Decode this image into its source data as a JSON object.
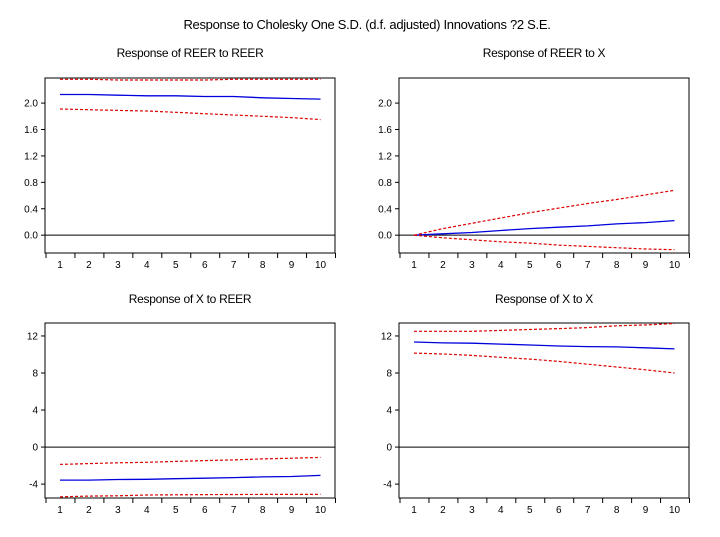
{
  "chart_data": {
    "type": "line",
    "title": "Response to Cholesky One S.D. (d.f. adjusted) Innovations ?2 S.E.",
    "colors": {
      "response": "#0000dd",
      "bands": "#dd0000",
      "zero_line": "#000000"
    },
    "x": [
      1,
      2,
      3,
      4,
      5,
      6,
      7,
      8,
      9,
      10
    ],
    "x_tick_labels": [
      "1",
      "2",
      "3",
      "4",
      "5",
      "6",
      "7",
      "8",
      "9",
      "10"
    ],
    "panels": [
      {
        "title": "Response of REER to REER",
        "ylim": [
          -0.27,
          2.38
        ],
        "y_ticks": [
          0.0,
          0.4,
          0.8,
          1.2,
          1.6,
          2.0
        ],
        "y_tick_labels": [
          "0.0",
          "0.4",
          "0.8",
          "1.2",
          "1.6",
          "2.0"
        ],
        "series": [
          {
            "name": "response",
            "values": [
              2.13,
              2.13,
              2.12,
              2.11,
              2.11,
              2.1,
              2.1,
              2.08,
              2.07,
              2.06
            ]
          },
          {
            "name": "upper",
            "values": [
              2.36,
              2.36,
              2.35,
              2.35,
              2.35,
              2.35,
              2.36,
              2.36,
              2.36,
              2.36
            ]
          },
          {
            "name": "lower",
            "values": [
              1.91,
              1.9,
              1.89,
              1.88,
              1.86,
              1.84,
              1.82,
              1.8,
              1.78,
              1.75
            ]
          }
        ]
      },
      {
        "title": "Response of REER to X",
        "ylim": [
          -0.27,
          2.38
        ],
        "y_ticks": [
          0.0,
          0.4,
          0.8,
          1.2,
          1.6,
          2.0
        ],
        "y_tick_labels": [
          "0.0",
          "0.4",
          "0.8",
          "1.2",
          "1.6",
          "2.0"
        ],
        "series": [
          {
            "name": "response",
            "values": [
              0.0,
              0.02,
              0.04,
              0.07,
              0.1,
              0.12,
              0.14,
              0.17,
              0.19,
              0.22
            ]
          },
          {
            "name": "upper",
            "values": [
              0.0,
              0.1,
              0.18,
              0.26,
              0.34,
              0.41,
              0.48,
              0.54,
              0.61,
              0.68
            ]
          },
          {
            "name": "lower",
            "values": [
              0.0,
              -0.04,
              -0.07,
              -0.1,
              -0.12,
              -0.15,
              -0.17,
              -0.19,
              -0.21,
              -0.22
            ]
          }
        ]
      },
      {
        "title": "Response of X to REER",
        "ylim": [
          -5.5,
          13.4
        ],
        "y_ticks": [
          -4,
          0,
          4,
          8,
          12
        ],
        "y_tick_labels": [
          "-4",
          "0",
          "4",
          "8",
          "12"
        ],
        "series": [
          {
            "name": "response",
            "values": [
              -3.57,
              -3.57,
              -3.5,
              -3.48,
              -3.42,
              -3.36,
              -3.3,
              -3.22,
              -3.18,
              -3.06
            ]
          },
          {
            "name": "upper",
            "values": [
              -1.87,
              -1.78,
              -1.7,
              -1.64,
              -1.55,
              -1.46,
              -1.38,
              -1.28,
              -1.2,
              -1.11
            ]
          },
          {
            "name": "lower",
            "values": [
              -5.37,
              -5.3,
              -5.26,
              -5.18,
              -5.15,
              -5.13,
              -5.12,
              -5.11,
              -5.11,
              -5.11
            ]
          }
        ]
      },
      {
        "title": "Response of X to X",
        "ylim": [
          -5.5,
          13.4
        ],
        "y_ticks": [
          -4,
          0,
          4,
          8,
          12
        ],
        "y_tick_labels": [
          "-4",
          "0",
          "4",
          "8",
          "12"
        ],
        "series": [
          {
            "name": "response",
            "values": [
              11.35,
              11.25,
              11.22,
              11.12,
              11.02,
              10.92,
              10.85,
              10.82,
              10.72,
              10.6
            ]
          },
          {
            "name": "upper",
            "values": [
              12.5,
              12.5,
              12.5,
              12.6,
              12.7,
              12.8,
              12.9,
              13.1,
              13.2,
              13.35
            ]
          },
          {
            "name": "lower",
            "values": [
              10.15,
              10.05,
              9.9,
              9.7,
              9.5,
              9.25,
              8.95,
              8.65,
              8.35,
              8.0
            ]
          }
        ]
      }
    ]
  }
}
